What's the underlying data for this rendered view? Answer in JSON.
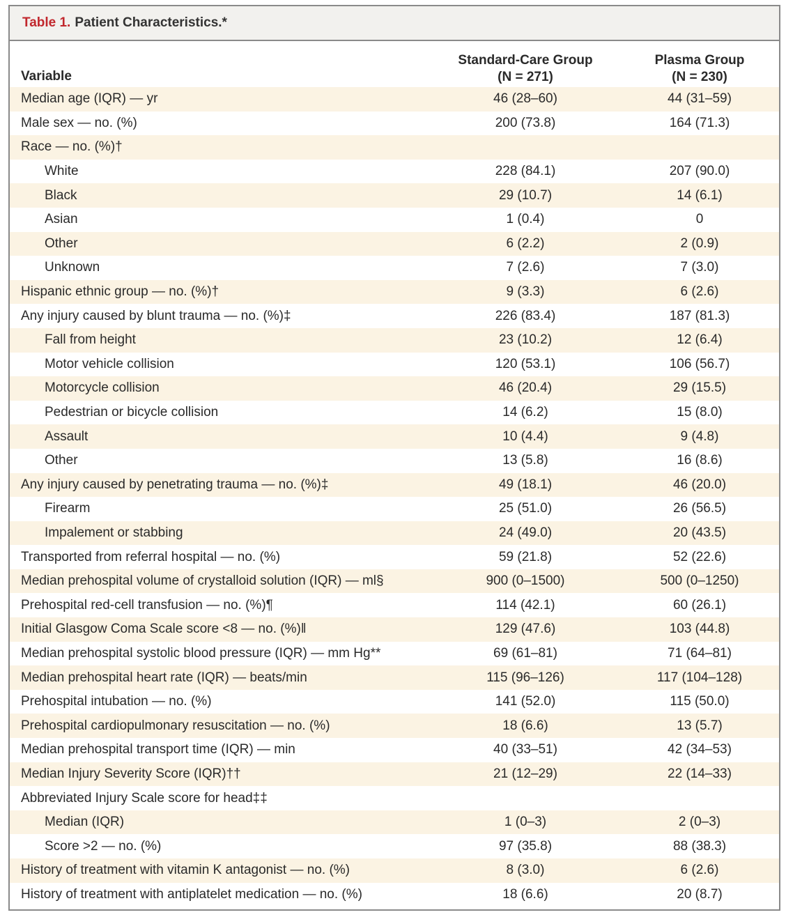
{
  "table": {
    "label": "Table 1.",
    "title": "Patient Characteristics.*",
    "headers": {
      "variable": "Variable",
      "col1_name": "Standard-Care Group",
      "col1_n": "(N = 271)",
      "col2_name": "Plasma Group",
      "col2_n": "(N = 230)"
    },
    "rows": [
      {
        "label": "Median age (IQR) — yr",
        "standard": "46 (28–60)",
        "plasma": "44 (31–59)",
        "indent": false
      },
      {
        "label": "Male sex — no. (%)",
        "standard": "200 (73.8)",
        "plasma": "164 (71.3)",
        "indent": false
      },
      {
        "label": "Race — no. (%)†",
        "standard": "",
        "plasma": "",
        "indent": false
      },
      {
        "label": "White",
        "standard": "228 (84.1)",
        "plasma": "207 (90.0)",
        "indent": true
      },
      {
        "label": "Black",
        "standard": "29 (10.7)",
        "plasma": "14 (6.1)",
        "indent": true
      },
      {
        "label": "Asian",
        "standard": "1 (0.4)",
        "plasma": "0",
        "indent": true
      },
      {
        "label": "Other",
        "standard": "6 (2.2)",
        "plasma": "2 (0.9)",
        "indent": true
      },
      {
        "label": "Unknown",
        "standard": "7 (2.6)",
        "plasma": "7 (3.0)",
        "indent": true
      },
      {
        "label": "Hispanic ethnic group — no. (%)†",
        "standard": "9 (3.3)",
        "plasma": "6 (2.6)",
        "indent": false
      },
      {
        "label": "Any injury caused by blunt trauma — no. (%)‡",
        "standard": "226 (83.4)",
        "plasma": "187 (81.3)",
        "indent": false
      },
      {
        "label": "Fall from height",
        "standard": "23 (10.2)",
        "plasma": "12 (6.4)",
        "indent": true
      },
      {
        "label": "Motor vehicle collision",
        "standard": "120 (53.1)",
        "plasma": "106 (56.7)",
        "indent": true
      },
      {
        "label": "Motorcycle collision",
        "standard": "46 (20.4)",
        "plasma": "29 (15.5)",
        "indent": true
      },
      {
        "label": "Pedestrian or bicycle collision",
        "standard": "14 (6.2)",
        "plasma": "15 (8.0)",
        "indent": true
      },
      {
        "label": "Assault",
        "standard": "10 (4.4)",
        "plasma": "9 (4.8)",
        "indent": true
      },
      {
        "label": "Other",
        "standard": "13 (5.8)",
        "plasma": "16 (8.6)",
        "indent": true
      },
      {
        "label": "Any injury caused by penetrating trauma — no. (%)‡",
        "standard": "49 (18.1)",
        "plasma": "46 (20.0)",
        "indent": false
      },
      {
        "label": "Firearm",
        "standard": "25 (51.0)",
        "plasma": "26 (56.5)",
        "indent": true
      },
      {
        "label": "Impalement or stabbing",
        "standard": "24 (49.0)",
        "plasma": "20 (43.5)",
        "indent": true
      },
      {
        "label": "Transported from referral hospital — no. (%)",
        "standard": "59 (21.8)",
        "plasma": "52 (22.6)",
        "indent": false
      },
      {
        "label": "Median prehospital volume of crystalloid solution (IQR) — ml§",
        "standard": "900 (0–1500)",
        "plasma": "500 (0–1250)",
        "indent": false
      },
      {
        "label": "Prehospital red-cell transfusion — no. (%)¶",
        "standard": "114 (42.1)",
        "plasma": "60 (26.1)",
        "indent": false
      },
      {
        "label": "Initial Glasgow Coma Scale score <8 — no. (%)‖",
        "standard": "129 (47.6)",
        "plasma": "103 (44.8)",
        "indent": false
      },
      {
        "label": "Median prehospital systolic blood pressure (IQR) — mm Hg**",
        "standard": "69 (61–81)",
        "plasma": "71 (64–81)",
        "indent": false
      },
      {
        "label": "Median prehospital heart rate (IQR) — beats/min",
        "standard": "115 (96–126)",
        "plasma": "117 (104–128)",
        "indent": false
      },
      {
        "label": "Prehospital intubation — no. (%)",
        "standard": "141 (52.0)",
        "plasma": "115 (50.0)",
        "indent": false
      },
      {
        "label": "Prehospital cardiopulmonary resuscitation — no. (%)",
        "standard": "18 (6.6)",
        "plasma": "13 (5.7)",
        "indent": false
      },
      {
        "label": "Median prehospital transport time (IQR) — min",
        "standard": "40 (33–51)",
        "plasma": "42 (34–53)",
        "indent": false
      },
      {
        "label": "Median Injury Severity Score (IQR)††",
        "standard": "21 (12–29)",
        "plasma": "22 (14–33)",
        "indent": false
      },
      {
        "label": "Abbreviated Injury Scale score for head‡‡",
        "standard": "",
        "plasma": "",
        "indent": false
      },
      {
        "label": "Median (IQR)",
        "standard": "1 (0–3)",
        "plasma": "2 (0–3)",
        "indent": true
      },
      {
        "label": "Score >2 — no. (%)",
        "standard": "97 (35.8)",
        "plasma": "88 (38.3)",
        "indent": true
      },
      {
        "label": "History of treatment with vitamin K antagonist — no. (%)",
        "standard": "8 (3.0)",
        "plasma": "6 (2.6)",
        "indent": false
      },
      {
        "label": "History of treatment with antiplatelet medication — no. (%)",
        "standard": "18 (6.6)",
        "plasma": "20 (8.7)",
        "indent": false
      }
    ],
    "colors": {
      "label_red": "#c1272d",
      "row_shade": "#fbf3e3",
      "border": "#8a8a8a",
      "title_bg": "#f2f1ee"
    }
  }
}
